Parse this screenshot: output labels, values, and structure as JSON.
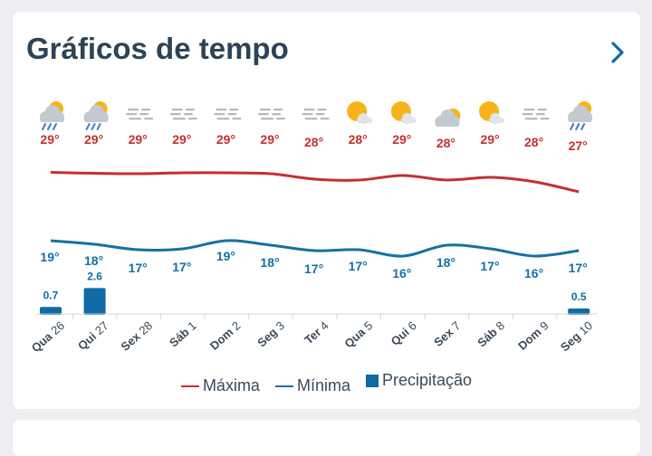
{
  "header": {
    "title": "Gráficos de tempo",
    "next_icon": "chevron-right-icon"
  },
  "legend": {
    "max_label": "Máxima",
    "min_label": "Mínima",
    "precip_label": "Precipitação"
  },
  "colors": {
    "max": "#c62f2f",
    "min": "#1570a6",
    "precip": "#0f6aa5",
    "title": "#2e4356",
    "accent": "#0f6aa5"
  },
  "chart_data": {
    "type": "line",
    "categories": [
      {
        "dow": "Qua",
        "day": "26"
      },
      {
        "dow": "Qui",
        "day": "27"
      },
      {
        "dow": "Sex",
        "day": "28"
      },
      {
        "dow": "Sáb",
        "day": "1"
      },
      {
        "dow": "Dom",
        "day": "2"
      },
      {
        "dow": "Seg",
        "day": "3"
      },
      {
        "dow": "Ter",
        "day": "4"
      },
      {
        "dow": "Qua",
        "day": "5"
      },
      {
        "dow": "Qui",
        "day": "6"
      },
      {
        "dow": "Sex",
        "day": "7"
      },
      {
        "dow": "Sáb",
        "day": "8"
      },
      {
        "dow": "Dom",
        "day": "9"
      },
      {
        "dow": "Seg",
        "day": "10"
      }
    ],
    "icons": [
      "rain-cloud-icon",
      "rain-cloud-icon",
      "fog-icon",
      "fog-icon",
      "fog-icon",
      "fog-icon",
      "fog-icon",
      "sun-cloud-icon",
      "sun-cloud-icon",
      "cloud-sun-icon",
      "sun-cloud-icon",
      "fog-icon",
      "rain-cloud-icon"
    ],
    "series": [
      {
        "name": "Máxima",
        "values": [
          29,
          29,
          29,
          29,
          29,
          29,
          28,
          28,
          29,
          28,
          29,
          28,
          27
        ],
        "labels": [
          "29°",
          "29°",
          "29°",
          "29°",
          "29°",
          "29°",
          "28°",
          "28°",
          "29°",
          "28°",
          "29°",
          "28°",
          "27°"
        ]
      },
      {
        "name": "Mínima",
        "values": [
          19,
          18,
          17,
          17,
          19,
          18,
          17,
          17,
          16,
          18,
          17,
          16,
          17
        ],
        "labels": [
          "19°",
          "18°",
          "17°",
          "17°",
          "19°",
          "18°",
          "17°",
          "17°",
          "16°",
          "18°",
          "17°",
          "16°",
          "17°"
        ]
      },
      {
        "name": "Precipitação",
        "values": [
          0.7,
          2.6,
          0,
          0,
          0,
          0,
          0,
          0,
          0,
          0,
          0,
          0,
          0.5
        ],
        "labels": [
          "0.7",
          "2.6",
          "",
          "",
          "",
          "",
          "",
          "",
          "",
          "",
          "",
          "",
          "0.5"
        ]
      }
    ],
    "grid": false,
    "legend_position": "bottom"
  }
}
